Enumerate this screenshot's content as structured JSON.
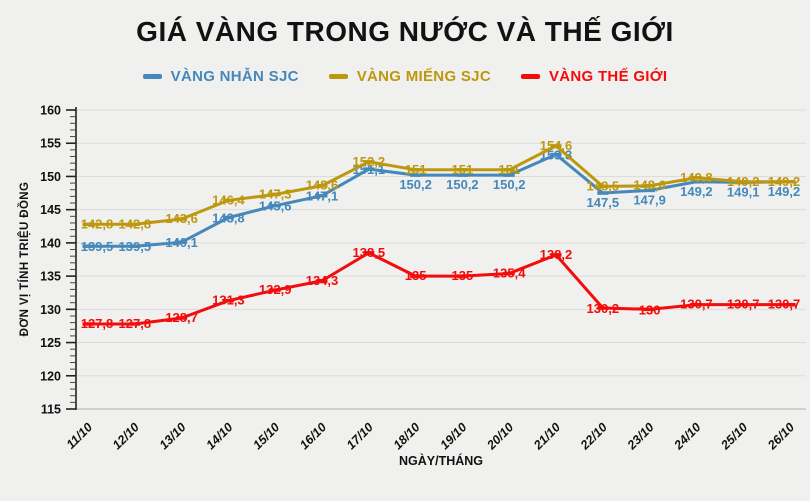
{
  "header": {
    "title": "GIÁ VÀNG TRONG NƯỚC VÀ THẾ GIỚI"
  },
  "chart_data": {
    "type": "line",
    "title": "GIÁ VÀNG TRONG NƯỚC VÀ THẾ GIỚI",
    "xlabel": "NGÀY/THÁNG",
    "ylabel": "ĐƠN VỊ TÍNH TRIỆU ĐỒNG",
    "ylim": [
      115,
      160
    ],
    "ytick_step": 5,
    "grid": true,
    "legend_position": "top",
    "categories": [
      "11/10",
      "12/10",
      "13/10",
      "14/10",
      "15/10",
      "16/10",
      "17/10",
      "18/10",
      "19/10",
      "20/10",
      "21/10",
      "22/10",
      "23/10",
      "24/10",
      "25/10",
      "26/10"
    ],
    "series": [
      {
        "name": "VÀNG NHẪN SJC",
        "color": "#4588bb",
        "values": [
          139.5,
          139.5,
          140.1,
          143.8,
          145.6,
          147.1,
          151.1,
          150.2,
          150.2,
          150.2,
          153.3,
          147.5,
          147.9,
          149.2,
          149.1,
          149.2
        ],
        "labels": [
          "139,5",
          "139,5",
          "140,1",
          "143,8",
          "145,6",
          "147,1",
          "151,1",
          "150,2",
          "150,2",
          "150,2",
          "153,3",
          "147,5",
          "147,9",
          "149,2",
          "149,1",
          "149,2"
        ]
      },
      {
        "name": "VÀNG MIẾNG SJC",
        "color": "#bd980f",
        "values": [
          142.8,
          142.8,
          143.6,
          146.4,
          147.3,
          148.6,
          152.2,
          151,
          151,
          151,
          154.6,
          148.5,
          148.6,
          149.8,
          149.2,
          149.2
        ],
        "labels": [
          "142,8",
          "142,8",
          "143,6",
          "146,4",
          "147,3",
          "148,6",
          "152,2",
          "151",
          "151",
          "151",
          "154,6",
          "148,5",
          "148,6",
          "149,8",
          "149,2",
          "149,2"
        ]
      },
      {
        "name": "VÀNG THẾ GIỚI",
        "color": "#f20c0c",
        "values": [
          127.8,
          127.8,
          128.7,
          131.3,
          132.9,
          134.3,
          138.5,
          135,
          135,
          135.4,
          138.2,
          130.2,
          130,
          130.7,
          130.7,
          130.7
        ],
        "labels": [
          "127,8",
          "127,8",
          "128,7",
          "131,3",
          "132,9",
          "134,3",
          "138,5",
          "135",
          "135",
          "135,4",
          "138,2",
          "130,2",
          "130",
          "130,7",
          "130,7",
          "130,7"
        ]
      }
    ]
  }
}
